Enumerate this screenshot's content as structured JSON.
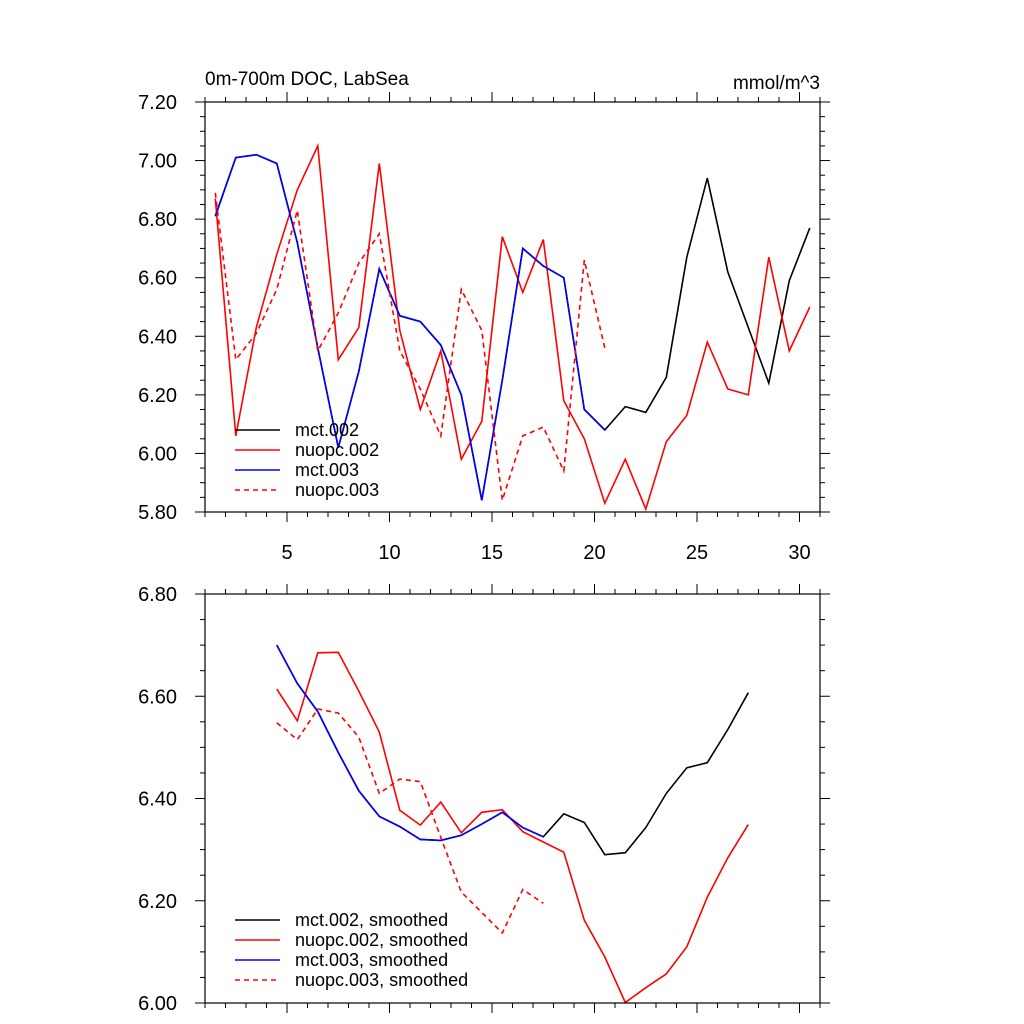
{
  "chart_data": [
    {
      "type": "line",
      "title": "0m-700m DOC, LabSea",
      "units": "mmol/m^3",
      "xlabel": "",
      "ylabel": "",
      "xlim": [
        1,
        31
      ],
      "ylim": [
        5.8,
        7.2
      ],
      "xticks": [
        5,
        10,
        15,
        20,
        25,
        30
      ],
      "xtick_labels": [
        "5",
        "10",
        "15",
        "20",
        "25",
        "30"
      ],
      "yticks": [
        5.8,
        6.0,
        6.2,
        6.4,
        6.6,
        6.8,
        7.0,
        7.2
      ],
      "ytick_labels": [
        "5.80",
        "6.00",
        "6.20",
        "6.40",
        "6.60",
        "6.80",
        "7.00",
        "7.20"
      ],
      "legend_position": "bottom-left",
      "series": [
        {
          "name": "mct.002",
          "color": "#000000",
          "dash": "solid",
          "x": [
            1.5,
            2.5,
            3.5,
            4.5,
            5.5,
            6.5,
            7.5,
            8.5,
            9.5,
            10.5,
            11.5,
            12.5,
            13.5,
            14.5,
            15.5,
            16.5,
            17.5,
            18.5,
            19.5,
            20.5,
            21.5,
            22.5,
            23.5,
            24.5,
            25.5,
            26.5,
            27.5,
            28.5,
            29.5,
            30.5
          ],
          "values": [
            6.81,
            7.01,
            7.02,
            6.99,
            6.72,
            6.36,
            6.02,
            6.28,
            6.63,
            6.47,
            6.45,
            6.37,
            6.2,
            5.84,
            6.25,
            6.7,
            6.64,
            6.6,
            6.15,
            6.08,
            6.16,
            6.14,
            6.26,
            6.67,
            6.94,
            6.62,
            6.43,
            6.24,
            6.59,
            6.77
          ]
        },
        {
          "name": "nuopc.002",
          "color": "#ff0000",
          "dash": "solid",
          "x": [
            1.5,
            2.5,
            3.5,
            4.5,
            5.5,
            6.5,
            7.5,
            8.5,
            9.5,
            10.5,
            11.5,
            12.5,
            13.5,
            14.5,
            15.5,
            16.5,
            17.5,
            18.5,
            19.5,
            20.5,
            21.5,
            22.5,
            23.5,
            24.5,
            25.5,
            26.5,
            27.5,
            28.5,
            29.5,
            30.5
          ],
          "values": [
            6.87,
            6.06,
            6.43,
            6.68,
            6.9,
            7.05,
            6.32,
            6.43,
            6.99,
            6.42,
            6.15,
            6.35,
            5.98,
            6.11,
            6.74,
            6.55,
            6.73,
            6.18,
            6.05,
            5.83,
            5.98,
            5.81,
            6.04,
            6.13,
            6.38,
            6.22,
            6.2,
            6.67,
            6.35,
            6.5
          ]
        },
        {
          "name": "mct.003",
          "color": "#0000ff",
          "dash": "solid",
          "x": [
            1.5,
            2.5,
            3.5,
            4.5,
            5.5,
            6.5,
            7.5,
            8.5,
            9.5,
            10.5,
            11.5,
            12.5,
            13.5,
            14.5,
            15.5,
            16.5,
            17.5,
            18.5,
            19.5,
            20.5
          ],
          "values": [
            6.81,
            7.01,
            7.02,
            6.99,
            6.72,
            6.36,
            6.02,
            6.28,
            6.63,
            6.47,
            6.45,
            6.37,
            6.2,
            5.84,
            6.25,
            6.7,
            6.64,
            6.6,
            6.15,
            6.08
          ]
        },
        {
          "name": "nuopc.003",
          "color": "#ff0000",
          "dash": "dashed",
          "x": [
            1.5,
            2.5,
            3.5,
            4.5,
            5.5,
            6.5,
            7.5,
            8.5,
            9.5,
            10.5,
            11.5,
            12.5,
            13.5,
            14.5,
            15.5,
            16.5,
            17.5,
            18.5,
            19.5,
            20.5
          ],
          "values": [
            6.89,
            6.32,
            6.41,
            6.56,
            6.83,
            6.35,
            6.48,
            6.65,
            6.75,
            6.35,
            6.22,
            6.06,
            6.56,
            6.42,
            5.84,
            6.06,
            6.09,
            5.94,
            6.66,
            6.36
          ]
        }
      ]
    },
    {
      "type": "line",
      "title": "",
      "xlabel": "",
      "ylabel": "",
      "xlim": [
        1,
        31
      ],
      "ylim": [
        6.0,
        6.8
      ],
      "xticks": [
        5,
        10,
        15,
        20,
        25,
        30
      ],
      "xtick_labels": [],
      "yticks": [
        6.0,
        6.2,
        6.4,
        6.6,
        6.8
      ],
      "ytick_labels": [
        "6.00",
        "6.20",
        "6.40",
        "6.60",
        "6.80"
      ],
      "legend_position": "bottom-left",
      "series": [
        {
          "name": "mct.002, smoothed",
          "color": "#000000",
          "dash": "solid",
          "x": [
            4.5,
            5.5,
            6.5,
            7.5,
            8.5,
            9.5,
            10.5,
            11.5,
            12.5,
            13.5,
            14.5,
            15.5,
            16.5,
            17.5,
            18.5,
            19.5,
            20.5,
            21.5,
            22.5,
            23.5,
            24.5,
            25.5,
            26.5,
            27.5
          ],
          "values": [
            6.7,
            6.625,
            6.57,
            6.49,
            6.415,
            6.365,
            6.345,
            6.32,
            6.318,
            6.328,
            6.35,
            6.373,
            6.343,
            6.325,
            6.37,
            6.353,
            6.29,
            6.294,
            6.343,
            6.41,
            6.46,
            6.47,
            6.535,
            6.607
          ]
        },
        {
          "name": "nuopc.002, smoothed",
          "color": "#ff0000",
          "dash": "solid",
          "x": [
            4.5,
            5.5,
            6.5,
            7.5,
            8.5,
            9.5,
            10.5,
            11.5,
            12.5,
            13.5,
            14.5,
            15.5,
            16.5,
            17.5,
            18.5,
            19.5,
            20.5,
            21.5,
            22.5,
            23.5,
            24.5,
            25.5,
            26.5,
            27.5
          ],
          "values": [
            6.614,
            6.552,
            6.685,
            6.686,
            6.61,
            6.53,
            6.377,
            6.348,
            6.393,
            6.333,
            6.373,
            6.378,
            6.335,
            6.315,
            6.295,
            6.162,
            6.09,
            6.001,
            6.03,
            6.057,
            6.11,
            6.207,
            6.284,
            6.349
          ]
        },
        {
          "name": "mct.003, smoothed",
          "color": "#0000ff",
          "dash": "solid",
          "x": [
            4.5,
            5.5,
            6.5,
            7.5,
            8.5,
            9.5,
            10.5,
            11.5,
            12.5,
            13.5,
            14.5,
            15.5,
            16.5,
            17.5
          ],
          "values": [
            6.7,
            6.625,
            6.57,
            6.49,
            6.415,
            6.365,
            6.345,
            6.32,
            6.318,
            6.328,
            6.35,
            6.373,
            6.343,
            6.325
          ]
        },
        {
          "name": "nuopc.003, smoothed",
          "color": "#ff0000",
          "dash": "dashed",
          "x": [
            4.5,
            5.5,
            6.5,
            7.5,
            8.5,
            9.5,
            10.5,
            11.5,
            12.5,
            13.5,
            14.5,
            15.5,
            16.5,
            17.5
          ],
          "values": [
            6.548,
            6.515,
            6.575,
            6.567,
            6.52,
            6.41,
            6.438,
            6.433,
            6.324,
            6.217,
            6.177,
            6.137,
            6.222,
            6.195
          ]
        }
      ]
    }
  ]
}
